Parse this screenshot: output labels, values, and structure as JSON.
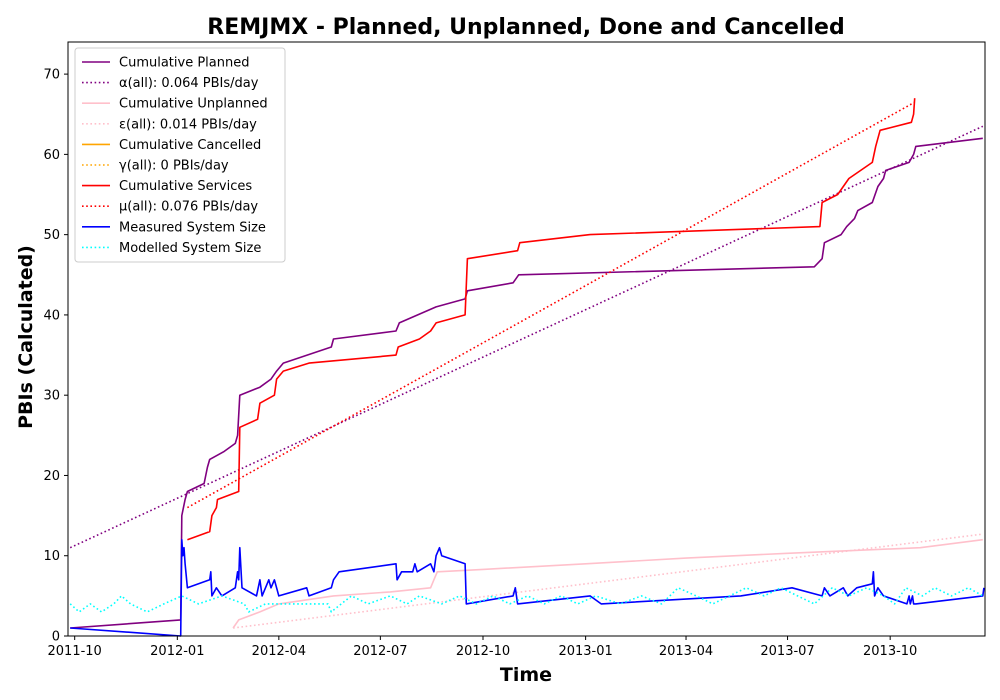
{
  "chart_data": {
    "type": "line",
    "title": "REMJMX - Planned, Unplanned, Done  and Cancelled",
    "xlabel": "Time",
    "ylabel": "PBIs (Calculated)",
    "x_type": "date",
    "xlim": [
      "2011-09-25",
      "2013-12-25"
    ],
    "ylim": [
      0,
      74
    ],
    "x_ticks": [
      {
        "date": "2011-10-01",
        "label": "2011-10"
      },
      {
        "date": "2012-01-01",
        "label": "2012-01"
      },
      {
        "date": "2012-04-01",
        "label": "2012-04"
      },
      {
        "date": "2012-07-01",
        "label": "2012-07"
      },
      {
        "date": "2012-10-01",
        "label": "2012-10"
      },
      {
        "date": "2013-01-01",
        "label": "2013-01"
      },
      {
        "date": "2013-04-01",
        "label": "2013-04"
      },
      {
        "date": "2013-07-01",
        "label": "2013-07"
      },
      {
        "date": "2013-10-01",
        "label": "2013-10"
      }
    ],
    "y_ticks": [
      {
        "value": 0,
        "label": "0"
      },
      {
        "value": 10,
        "label": "10"
      },
      {
        "value": 20,
        "label": "20"
      },
      {
        "value": 30,
        "label": "30"
      },
      {
        "value": 40,
        "label": "40"
      },
      {
        "value": 50,
        "label": "50"
      },
      {
        "value": 60,
        "label": "60"
      },
      {
        "value": 70,
        "label": "70"
      }
    ],
    "grid": false,
    "legend_position": "top-left",
    "series": [
      {
        "name": "Cumulative Planned",
        "color": "#800080",
        "style": "solid",
        "points": [
          [
            "2011-09-27",
            1
          ],
          [
            "2012-01-04",
            2
          ],
          [
            "2012-01-05",
            15
          ],
          [
            "2012-01-08",
            17
          ],
          [
            "2012-01-10",
            18
          ],
          [
            "2012-01-25",
            19
          ],
          [
            "2012-01-28",
            21
          ],
          [
            "2012-01-30",
            22
          ],
          [
            "2012-02-12",
            23
          ],
          [
            "2012-02-22",
            24
          ],
          [
            "2012-02-24",
            25
          ],
          [
            "2012-02-26",
            30
          ],
          [
            "2012-03-15",
            31
          ],
          [
            "2012-03-25",
            32
          ],
          [
            "2012-03-30",
            33
          ],
          [
            "2012-04-05",
            34
          ],
          [
            "2012-05-18",
            36
          ],
          [
            "2012-05-20",
            37
          ],
          [
            "2012-07-15",
            38
          ],
          [
            "2012-07-18",
            39
          ],
          [
            "2012-08-20",
            41
          ],
          [
            "2012-09-15",
            42
          ],
          [
            "2012-09-17",
            43
          ],
          [
            "2012-10-28",
            44
          ],
          [
            "2012-11-02",
            45
          ],
          [
            "2013-07-25",
            46
          ],
          [
            "2013-08-01",
            47
          ],
          [
            "2013-08-03",
            49
          ],
          [
            "2013-08-18",
            50
          ],
          [
            "2013-08-23",
            51
          ],
          [
            "2013-08-30",
            52
          ],
          [
            "2013-09-02",
            53
          ],
          [
            "2013-09-15",
            54
          ],
          [
            "2013-09-20",
            56
          ],
          [
            "2013-09-25",
            57
          ],
          [
            "2013-09-27",
            58
          ],
          [
            "2013-10-18",
            59
          ],
          [
            "2013-10-22",
            60
          ],
          [
            "2013-10-24",
            61
          ],
          [
            "2013-12-23",
            62
          ]
        ]
      },
      {
        "name": "α(all): 0.064 PBIs/day",
        "color": "#800080",
        "style": "dotted",
        "points": [
          [
            "2011-09-27",
            11
          ],
          [
            "2013-12-23",
            63.5
          ]
        ]
      },
      {
        "name": "Cumulative Unplanned",
        "color": "#ffc0cb",
        "style": "solid",
        "points": [
          [
            "2012-02-20",
            1
          ],
          [
            "2012-02-25",
            2
          ],
          [
            "2012-03-15",
            3
          ],
          [
            "2012-04-01",
            4
          ],
          [
            "2012-05-20",
            5
          ],
          [
            "2012-07-10",
            5.5
          ],
          [
            "2012-08-15",
            6
          ],
          [
            "2012-08-18",
            7
          ],
          [
            "2012-08-21",
            8
          ],
          [
            "2012-10-01",
            8.3
          ],
          [
            "2013-01-01",
            9
          ],
          [
            "2013-04-01",
            9.7
          ],
          [
            "2013-07-01",
            10.3
          ],
          [
            "2013-10-28",
            11
          ],
          [
            "2013-12-23",
            12
          ]
        ]
      },
      {
        "name": "ε(all): 0.014 PBIs/day",
        "color": "#ffc0cb",
        "style": "dotted",
        "points": [
          [
            "2012-02-20",
            1
          ],
          [
            "2013-12-23",
            12.7
          ]
        ]
      },
      {
        "name": "Cumulative Cancelled",
        "color": "#ffa500",
        "style": "solid",
        "points": []
      },
      {
        "name": "γ(all): 0 PBIs/day",
        "color": "#ffa500",
        "style": "dotted",
        "points": []
      },
      {
        "name": "Cumulative Services",
        "color": "#ff0000",
        "style": "solid",
        "points": [
          [
            "2012-01-10",
            12
          ],
          [
            "2012-01-30",
            13
          ],
          [
            "2012-02-01",
            15
          ],
          [
            "2012-02-05",
            16
          ],
          [
            "2012-02-06",
            17
          ],
          [
            "2012-02-25",
            18
          ],
          [
            "2012-02-26",
            26
          ],
          [
            "2012-03-13",
            27
          ],
          [
            "2012-03-15",
            29
          ],
          [
            "2012-03-28",
            30
          ],
          [
            "2012-03-30",
            32
          ],
          [
            "2012-04-05",
            33
          ],
          [
            "2012-04-28",
            34
          ],
          [
            "2012-07-15",
            35
          ],
          [
            "2012-07-17",
            36
          ],
          [
            "2012-08-05",
            37
          ],
          [
            "2012-08-15",
            38
          ],
          [
            "2012-08-20",
            39
          ],
          [
            "2012-09-15",
            40
          ],
          [
            "2012-09-17",
            47
          ],
          [
            "2012-11-01",
            48
          ],
          [
            "2012-11-03",
            49
          ],
          [
            "2013-01-05",
            50
          ],
          [
            "2013-07-30",
            51
          ],
          [
            "2013-08-01",
            54
          ],
          [
            "2013-08-15",
            55
          ],
          [
            "2013-08-25",
            57
          ],
          [
            "2013-09-15",
            59
          ],
          [
            "2013-09-18",
            61
          ],
          [
            "2013-09-22",
            63
          ],
          [
            "2013-10-20",
            64
          ],
          [
            "2013-10-22",
            65
          ],
          [
            "2013-10-23",
            67
          ]
        ]
      },
      {
        "name": "μ(all): 0.076 PBIs/day",
        "color": "#ff0000",
        "style": "dotted",
        "points": [
          [
            "2012-01-10",
            16
          ],
          [
            "2013-10-23",
            66.5
          ]
        ]
      },
      {
        "name": "Measured System Size",
        "color": "#0000ff",
        "style": "solid",
        "points": [
          [
            "2011-09-27",
            1
          ],
          [
            "2012-01-04",
            0
          ],
          [
            "2012-01-05",
            12
          ],
          [
            "2012-01-06",
            10
          ],
          [
            "2012-01-07",
            11
          ],
          [
            "2012-01-08",
            9
          ],
          [
            "2012-01-10",
            6
          ],
          [
            "2012-01-30",
            7
          ],
          [
            "2012-01-31",
            8
          ],
          [
            "2012-02-01",
            5
          ],
          [
            "2012-02-05",
            6
          ],
          [
            "2012-02-10",
            5
          ],
          [
            "2012-02-22",
            6
          ],
          [
            "2012-02-24",
            8
          ],
          [
            "2012-02-25",
            7
          ],
          [
            "2012-02-26",
            11
          ],
          [
            "2012-02-28",
            6
          ],
          [
            "2012-03-12",
            5
          ],
          [
            "2012-03-15",
            7
          ],
          [
            "2012-03-17",
            5
          ],
          [
            "2012-03-20",
            6
          ],
          [
            "2012-03-23",
            7
          ],
          [
            "2012-03-25",
            6
          ],
          [
            "2012-03-28",
            7
          ],
          [
            "2012-03-30",
            6
          ],
          [
            "2012-04-01",
            5
          ],
          [
            "2012-04-26",
            6
          ],
          [
            "2012-04-28",
            5
          ],
          [
            "2012-05-18",
            6
          ],
          [
            "2012-05-20",
            7
          ],
          [
            "2012-05-25",
            8
          ],
          [
            "2012-07-15",
            9
          ],
          [
            "2012-07-16",
            7
          ],
          [
            "2012-07-20",
            8
          ],
          [
            "2012-07-30",
            8
          ],
          [
            "2012-08-01",
            9
          ],
          [
            "2012-08-03",
            8
          ],
          [
            "2012-08-15",
            9
          ],
          [
            "2012-08-18",
            8
          ],
          [
            "2012-08-20",
            10
          ],
          [
            "2012-08-23",
            11
          ],
          [
            "2012-08-25",
            10
          ],
          [
            "2012-09-15",
            9
          ],
          [
            "2012-09-16",
            4
          ],
          [
            "2012-10-28",
            5
          ],
          [
            "2012-10-30",
            6
          ],
          [
            "2012-11-01",
            4
          ],
          [
            "2013-01-05",
            5
          ],
          [
            "2013-01-15",
            4
          ],
          [
            "2013-05-20",
            5
          ],
          [
            "2013-07-05",
            6
          ],
          [
            "2013-08-01",
            5
          ],
          [
            "2013-08-03",
            6
          ],
          [
            "2013-08-08",
            5
          ],
          [
            "2013-08-20",
            6
          ],
          [
            "2013-08-24",
            5
          ],
          [
            "2013-09-01",
            6
          ],
          [
            "2013-09-15",
            6.5
          ],
          [
            "2013-09-16",
            8
          ],
          [
            "2013-09-17",
            5
          ],
          [
            "2013-09-20",
            6
          ],
          [
            "2013-09-25",
            5
          ],
          [
            "2013-10-16",
            4
          ],
          [
            "2013-10-18",
            5
          ],
          [
            "2013-10-19",
            4
          ],
          [
            "2013-10-21",
            5
          ],
          [
            "2013-10-22",
            4
          ],
          [
            "2013-10-24",
            4
          ],
          [
            "2013-12-23",
            5
          ],
          [
            "2013-12-24",
            6
          ]
        ]
      },
      {
        "name": "Modelled System Size",
        "color": "#00ffff",
        "style": "dotted",
        "points": [
          [
            "2011-09-27",
            4
          ],
          [
            "2011-10-05",
            3
          ],
          [
            "2011-10-15",
            4
          ],
          [
            "2011-10-25",
            3
          ],
          [
            "2011-11-05",
            4
          ],
          [
            "2011-11-12",
            5
          ],
          [
            "2011-11-20",
            4
          ],
          [
            "2011-12-05",
            3
          ],
          [
            "2011-12-20",
            4
          ],
          [
            "2012-01-05",
            5
          ],
          [
            "2012-01-20",
            4
          ],
          [
            "2012-02-10",
            5
          ],
          [
            "2012-03-01",
            4
          ],
          [
            "2012-03-05",
            3
          ],
          [
            "2012-03-20",
            4
          ],
          [
            "2012-04-15",
            4
          ],
          [
            "2012-05-15",
            4
          ],
          [
            "2012-05-18",
            3
          ],
          [
            "2012-06-05",
            5
          ],
          [
            "2012-06-20",
            4
          ],
          [
            "2012-07-10",
            5
          ],
          [
            "2012-07-25",
            4
          ],
          [
            "2012-08-05",
            5
          ],
          [
            "2012-08-25",
            4
          ],
          [
            "2012-09-10",
            5
          ],
          [
            "2012-09-25",
            4
          ],
          [
            "2012-10-10",
            5
          ],
          [
            "2012-10-25",
            4
          ],
          [
            "2012-11-10",
            5
          ],
          [
            "2012-11-25",
            4
          ],
          [
            "2012-12-10",
            5
          ],
          [
            "2012-12-25",
            4
          ],
          [
            "2013-01-10",
            5
          ],
          [
            "2013-02-01",
            4
          ],
          [
            "2013-02-20",
            5
          ],
          [
            "2013-03-10",
            4
          ],
          [
            "2013-03-25",
            6
          ],
          [
            "2013-04-10",
            5
          ],
          [
            "2013-04-25",
            4
          ],
          [
            "2013-05-10",
            5
          ],
          [
            "2013-05-25",
            6
          ],
          [
            "2013-06-10",
            5
          ],
          [
            "2013-06-25",
            6
          ],
          [
            "2013-07-10",
            5
          ],
          [
            "2013-07-25",
            4
          ],
          [
            "2013-08-10",
            6
          ],
          [
            "2013-08-25",
            5
          ],
          [
            "2013-09-10",
            6
          ],
          [
            "2013-09-25",
            5
          ],
          [
            "2013-10-05",
            4
          ],
          [
            "2013-10-15",
            6
          ],
          [
            "2013-10-30",
            5
          ],
          [
            "2013-11-10",
            6
          ],
          [
            "2013-11-25",
            5
          ],
          [
            "2013-12-10",
            6
          ],
          [
            "2013-12-23",
            5
          ]
        ]
      }
    ]
  }
}
